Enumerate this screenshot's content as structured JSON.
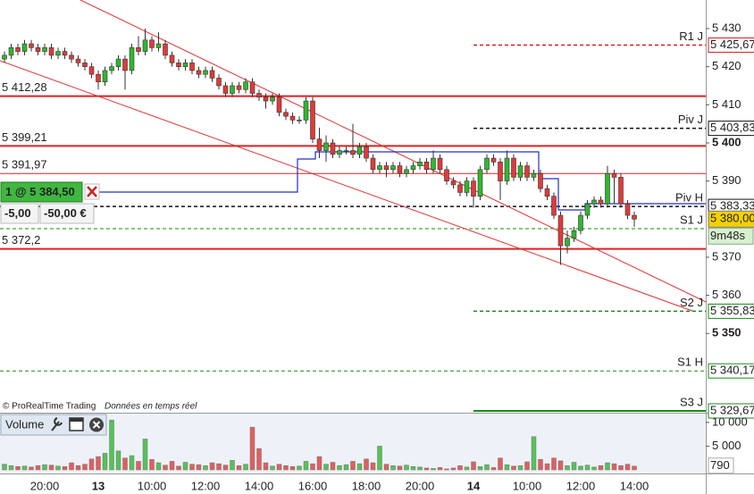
{
  "chart_data": {
    "type": "candlestick",
    "categories": [
      null,
      null,
      null,
      null,
      null,
      null,
      "20:00",
      null,
      null,
      null,
      null,
      null,
      null,
      null,
      "13",
      null,
      null,
      null,
      null,
      null,
      null,
      null,
      "10:00",
      null,
      null,
      null,
      null,
      null,
      null,
      null,
      "12:00",
      null,
      null,
      null,
      null,
      null,
      null,
      null,
      "14:00",
      null,
      null,
      null,
      null,
      null,
      null,
      null,
      "16:00",
      null,
      null,
      null,
      null,
      null,
      null,
      null,
      "18:00",
      null,
      null,
      null,
      null,
      null,
      null,
      null,
      "20:00",
      null,
      null,
      null,
      null,
      null,
      null,
      null,
      "14",
      null,
      null,
      null,
      null,
      null,
      null,
      null,
      "10:00",
      null,
      null,
      null,
      null,
      null,
      null,
      null,
      "12:00",
      null,
      null,
      null,
      null,
      null,
      null,
      null,
      "14:00"
    ],
    "open": [
      5422,
      5423,
      5425,
      5424,
      5426,
      5425,
      5424,
      5425,
      5423,
      5424,
      5423,
      5422,
      5421,
      5420,
      5418,
      5416,
      5419,
      5420,
      5422,
      5419,
      5425,
      5424,
      5427,
      5425,
      5426,
      5423,
      5421,
      5420,
      5421,
      5419,
      5418,
      5419,
      5417,
      5415,
      5413,
      5415,
      5414,
      5416,
      5413,
      5412,
      5411,
      5412,
      5408,
      5407,
      5406,
      5406,
      5411,
      5401,
      5398,
      5400,
      5397,
      5398,
      5398,
      5397,
      5399,
      5396,
      5393,
      5394,
      5393,
      5394,
      5392,
      5393,
      5394,
      5395,
      5393,
      5396,
      5393,
      5390,
      5389,
      5387,
      5390,
      5386,
      5393,
      5396,
      5395,
      5390,
      5396,
      5391,
      5394,
      5391,
      5392,
      5388,
      5386,
      5381,
      5373,
      5375,
      5377,
      5381,
      5384,
      5385,
      5384,
      5392,
      5391,
      5384,
      5381
    ],
    "high": [
      5424,
      5426,
      5426,
      5427,
      5427,
      5426,
      5426,
      5426,
      5425,
      5425,
      5424,
      5423,
      5422,
      5421,
      5419,
      5420,
      5421,
      5423,
      5423,
      5426,
      5428,
      5430,
      5428,
      5429,
      5427,
      5424,
      5422,
      5422,
      5422,
      5420,
      5420,
      5420,
      5418,
      5416,
      5416,
      5416,
      5417,
      5417,
      5414,
      5413,
      5413,
      5413,
      5409,
      5408,
      5407,
      5412,
      5412,
      5404,
      5402,
      5401,
      5399,
      5399,
      5405,
      5400,
      5400,
      5397,
      5395,
      5395,
      5395,
      5395,
      5394,
      5395,
      5396,
      5396,
      5398,
      5397,
      5394,
      5391,
      5390,
      5391,
      5391,
      5394,
      5397,
      5397,
      5396,
      5398,
      5397,
      5395,
      5395,
      5393,
      5393,
      5389,
      5387,
      5382,
      5377,
      5378,
      5382,
      5385,
      5386,
      5386,
      5394,
      5393,
      5392,
      5385,
      5382
    ],
    "low": [
      5421,
      5422,
      5423,
      5423,
      5424,
      5423,
      5423,
      5422,
      5422,
      5422,
      5421,
      5420,
      5419,
      5417,
      5414,
      5415,
      5418,
      5419,
      5414,
      5418,
      5423,
      5423,
      5424,
      5424,
      5422,
      5420,
      5419,
      5419,
      5418,
      5417,
      5417,
      5416,
      5414,
      5412,
      5412,
      5413,
      5413,
      5412,
      5411,
      5409,
      5410,
      5407,
      5406,
      5405,
      5405,
      5405,
      5400,
      5396,
      5395,
      5396,
      5396,
      5397,
      5396,
      5396,
      5395,
      5392,
      5392,
      5391,
      5392,
      5391,
      5391,
      5392,
      5393,
      5392,
      5392,
      5392,
      5389,
      5388,
      5386,
      5386,
      5383,
      5385,
      5392,
      5394,
      5385,
      5389,
      5390,
      5390,
      5390,
      5390,
      5387,
      5385,
      5380,
      5368,
      5371,
      5374,
      5376,
      5380,
      5383,
      5383,
      5383,
      5384,
      5383,
      5380,
      5378
    ],
    "close": [
      5423,
      5425,
      5424,
      5426,
      5425,
      5424,
      5425,
      5423,
      5424,
      5423,
      5422,
      5421,
      5420,
      5418,
      5416,
      5419,
      5420,
      5422,
      5419,
      5425,
      5424,
      5427,
      5425,
      5426,
      5423,
      5421,
      5420,
      5421,
      5419,
      5418,
      5419,
      5417,
      5415,
      5413,
      5415,
      5414,
      5416,
      5413,
      5412,
      5411,
      5412,
      5408,
      5407,
      5406,
      5406,
      5411,
      5401,
      5398,
      5400,
      5397,
      5398,
      5398,
      5397,
      5399,
      5396,
      5393,
      5394,
      5393,
      5394,
      5392,
      5393,
      5394,
      5395,
      5393,
      5396,
      5393,
      5390,
      5389,
      5387,
      5390,
      5386,
      5393,
      5396,
      5395,
      5390,
      5396,
      5391,
      5394,
      5391,
      5392,
      5388,
      5386,
      5381,
      5373,
      5375,
      5377,
      5381,
      5384,
      5385,
      5384,
      5392,
      5391,
      5384,
      5381,
      5380
    ],
    "up_color": "#2eb82e",
    "down_color": "#e03a3a",
    "ylim": [
      5329.2,
      5437.5
    ],
    "yticks": [
      {
        "value": 5430,
        "label": "5 430"
      },
      {
        "value": 5420,
        "label": "5 420"
      },
      {
        "value": 5410,
        "label": "5 410"
      },
      {
        "value": 5400,
        "label": "5 400"
      },
      {
        "value": 5390,
        "label": "5 390"
      },
      {
        "value": 5370,
        "label": "5 370"
      },
      {
        "value": 5360,
        "label": "5 360"
      },
      {
        "value": 5350,
        "label": "5 350"
      }
    ],
    "day_levels": [
      {
        "name": "R1 J",
        "value": 5425.67,
        "label": "5 425,67",
        "color": "#d42020",
        "style": "dashed"
      },
      {
        "name": "Piv J",
        "value": 5403.83,
        "label": "5 403,83",
        "color": "#111111",
        "style": "dashed"
      },
      {
        "name": "S2 J",
        "value": 5355.83,
        "label": "5 355,83",
        "color": "#1a8a1a",
        "style": "dashed"
      },
      {
        "name": "S3 J",
        "value": 5329.67,
        "label": "5 329,67",
        "color": "#1a8a1a",
        "style": "solid"
      }
    ],
    "full_levels": [
      {
        "name": "Piv H",
        "value": 5383.33,
        "label": "5 383,33",
        "color": "#111111",
        "style": "dashed"
      },
      {
        "name": "S1 J",
        "value": 5377.5,
        "color": "#1a8a1a",
        "style": "dashed"
      },
      {
        "name": "S1 H",
        "value": 5340.17,
        "label": "5 340,17",
        "color": "#1a8a1a",
        "style": "dashed"
      }
    ],
    "left_levels": [
      {
        "value": 5412.28,
        "label": "5 412,28",
        "width": 2
      },
      {
        "value": 5399.21,
        "label": "5 399,21",
        "width": 2
      },
      {
        "value": 5391.97,
        "label": "5 391,97",
        "width": 1
      },
      {
        "value": 5372.2,
        "label": "5 372,2",
        "width": 2
      }
    ],
    "level_line_color": "#e02020",
    "last_price": {
      "value": 5380,
      "label": "5 380,00",
      "timer": "9m48s"
    },
    "position": {
      "label": "1 @ 5 384,50",
      "points": "-5,00",
      "amount": "-50,00 €"
    },
    "footer": {
      "source": "© ProRealTime Trading",
      "note": "Données en temps réel"
    },
    "volume": {
      "title": "Volume",
      "values": [
        1200,
        900,
        700,
        800,
        600,
        900,
        1100,
        1000,
        800,
        700,
        1500,
        900,
        1200,
        2300,
        2800,
        3500,
        10500,
        4000,
        2500,
        3000,
        1800,
        6500,
        2200,
        1500,
        1000,
        1800,
        800,
        1600,
        1200,
        1100,
        900,
        1500,
        1300,
        1000,
        2000,
        900,
        1200,
        9000,
        4500,
        1500,
        800,
        1200,
        900,
        700,
        800,
        1800,
        1300,
        2800,
        1200,
        1600,
        900,
        1100,
        1800,
        1300,
        2300,
        1500,
        5000,
        1200,
        900,
        800,
        1000,
        700,
        600,
        400,
        300,
        500,
        200,
        400,
        900,
        600,
        1700,
        700,
        1100,
        500,
        2500,
        1100,
        800,
        900,
        1700,
        7000,
        2200,
        1300,
        2500,
        1900,
        900,
        1600,
        800,
        1000,
        600,
        900,
        1500,
        1300,
        900,
        1200,
        790
      ],
      "ylim": [
        0,
        11850
      ],
      "yticks": [
        {
          "value": 10000,
          "label": "10 000"
        },
        {
          "value": 5000,
          "label": "5 000"
        }
      ],
      "last_label": "790"
    }
  }
}
